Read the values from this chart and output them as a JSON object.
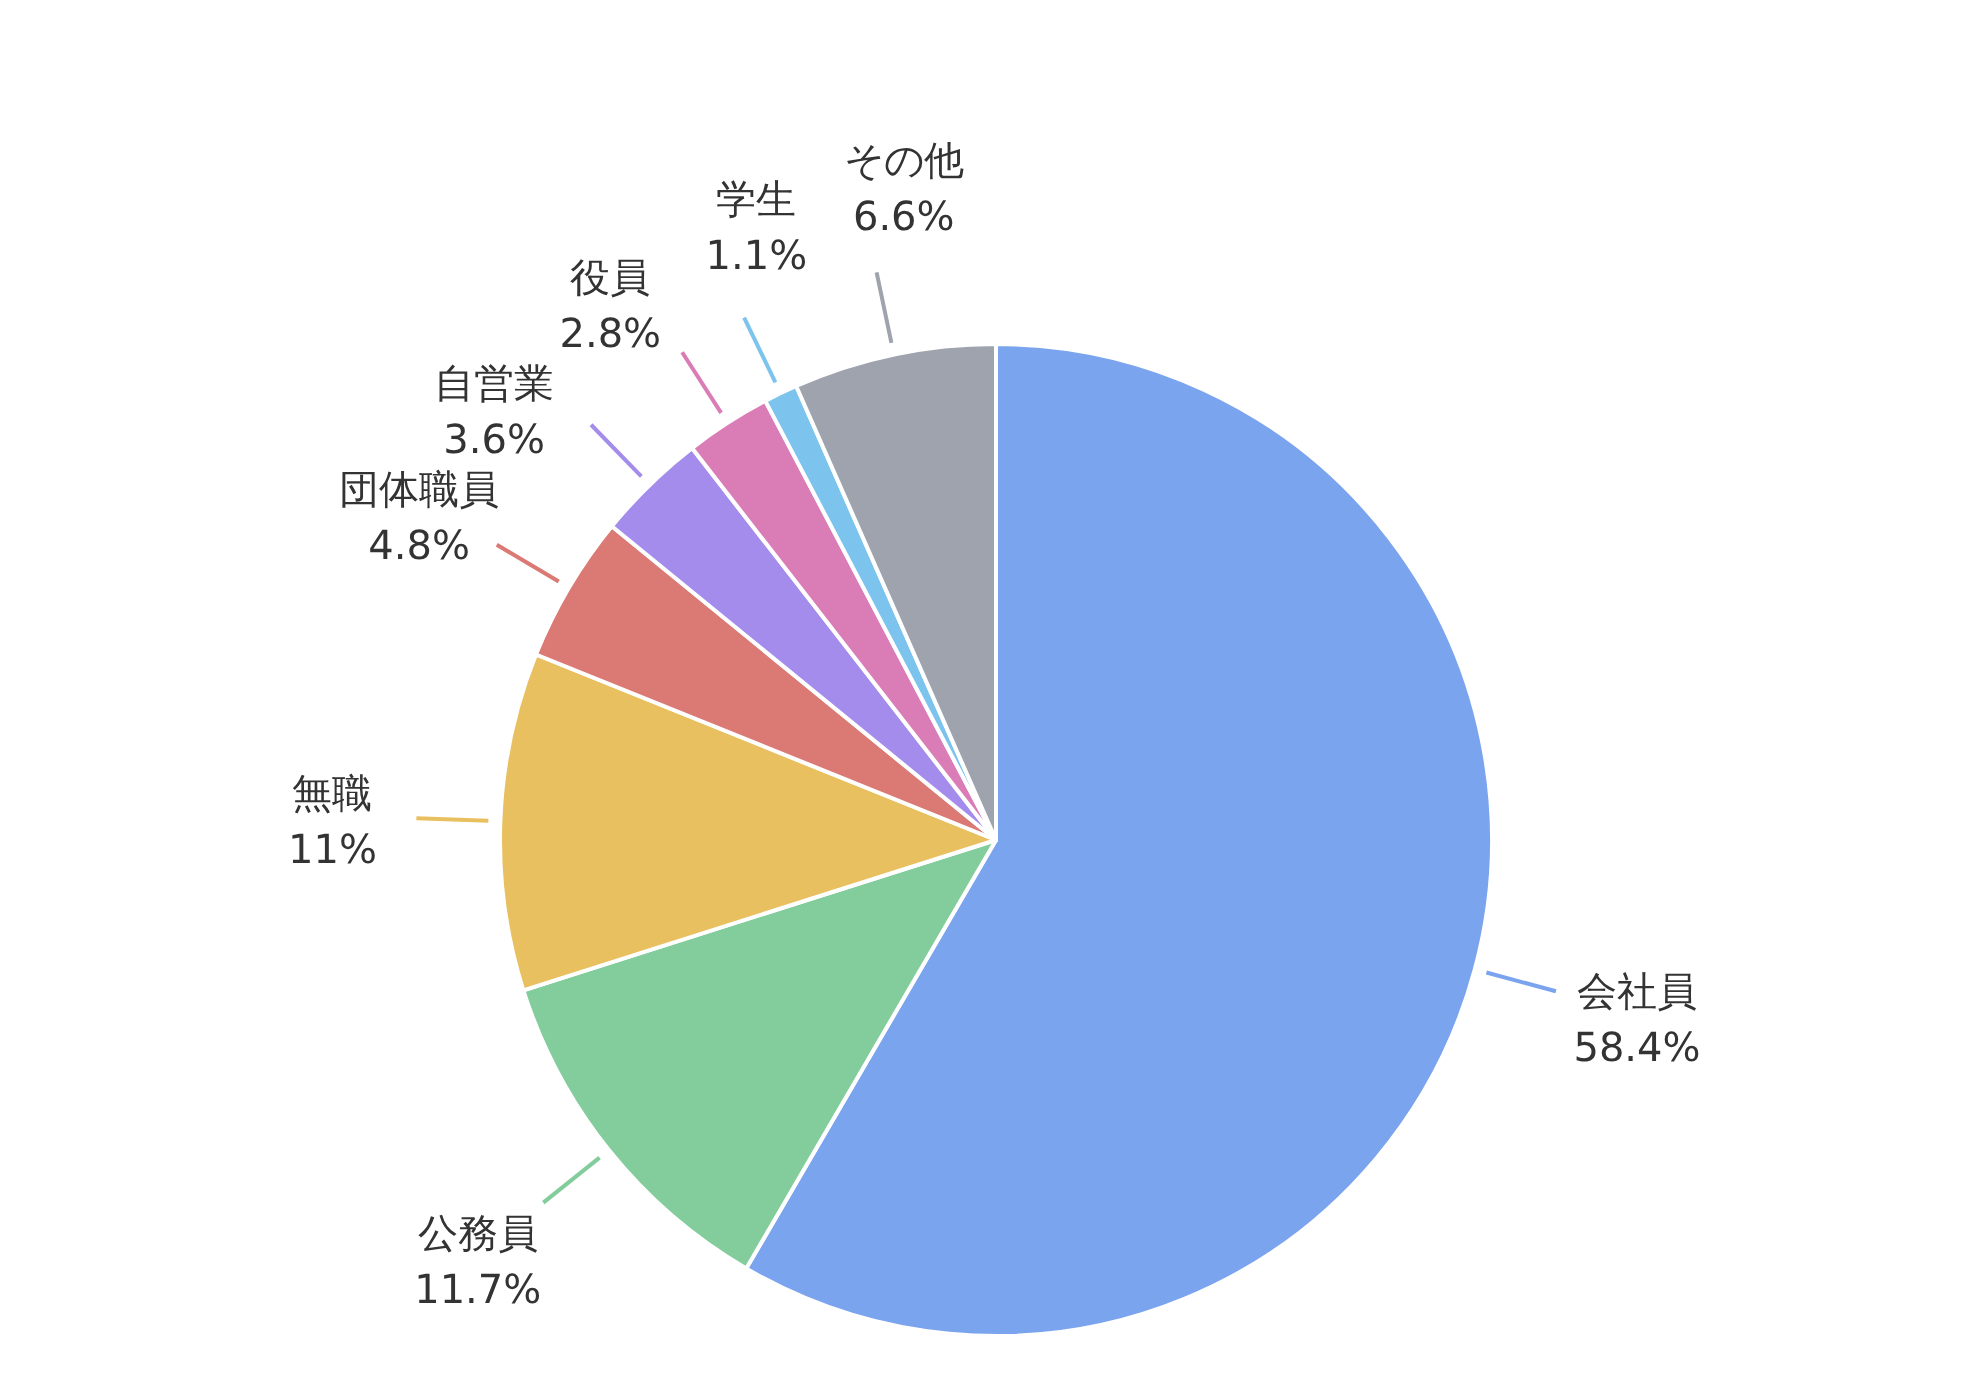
{
  "chart_data": {
    "type": "pie",
    "categories": [
      "会社員",
      "公務員",
      "無職",
      "団体職員",
      "自営業",
      "役員",
      "学生",
      "その他"
    ],
    "values": [
      58.4,
      11.7,
      11,
      4.8,
      3.6,
      2.8,
      1.1,
      6.6
    ],
    "value_labels": [
      "58.4%",
      "11.7%",
      "11%",
      "4.8%",
      "3.6%",
      "2.8%",
      "1.1%",
      "6.6%"
    ],
    "colors": [
      "#7ba4ee",
      "#83cc9c",
      "#e9c05f",
      "#db7a74",
      "#a38cec",
      "#da7cb6",
      "#7cc3ee",
      "#9ea3ad"
    ],
    "legend": false
  }
}
